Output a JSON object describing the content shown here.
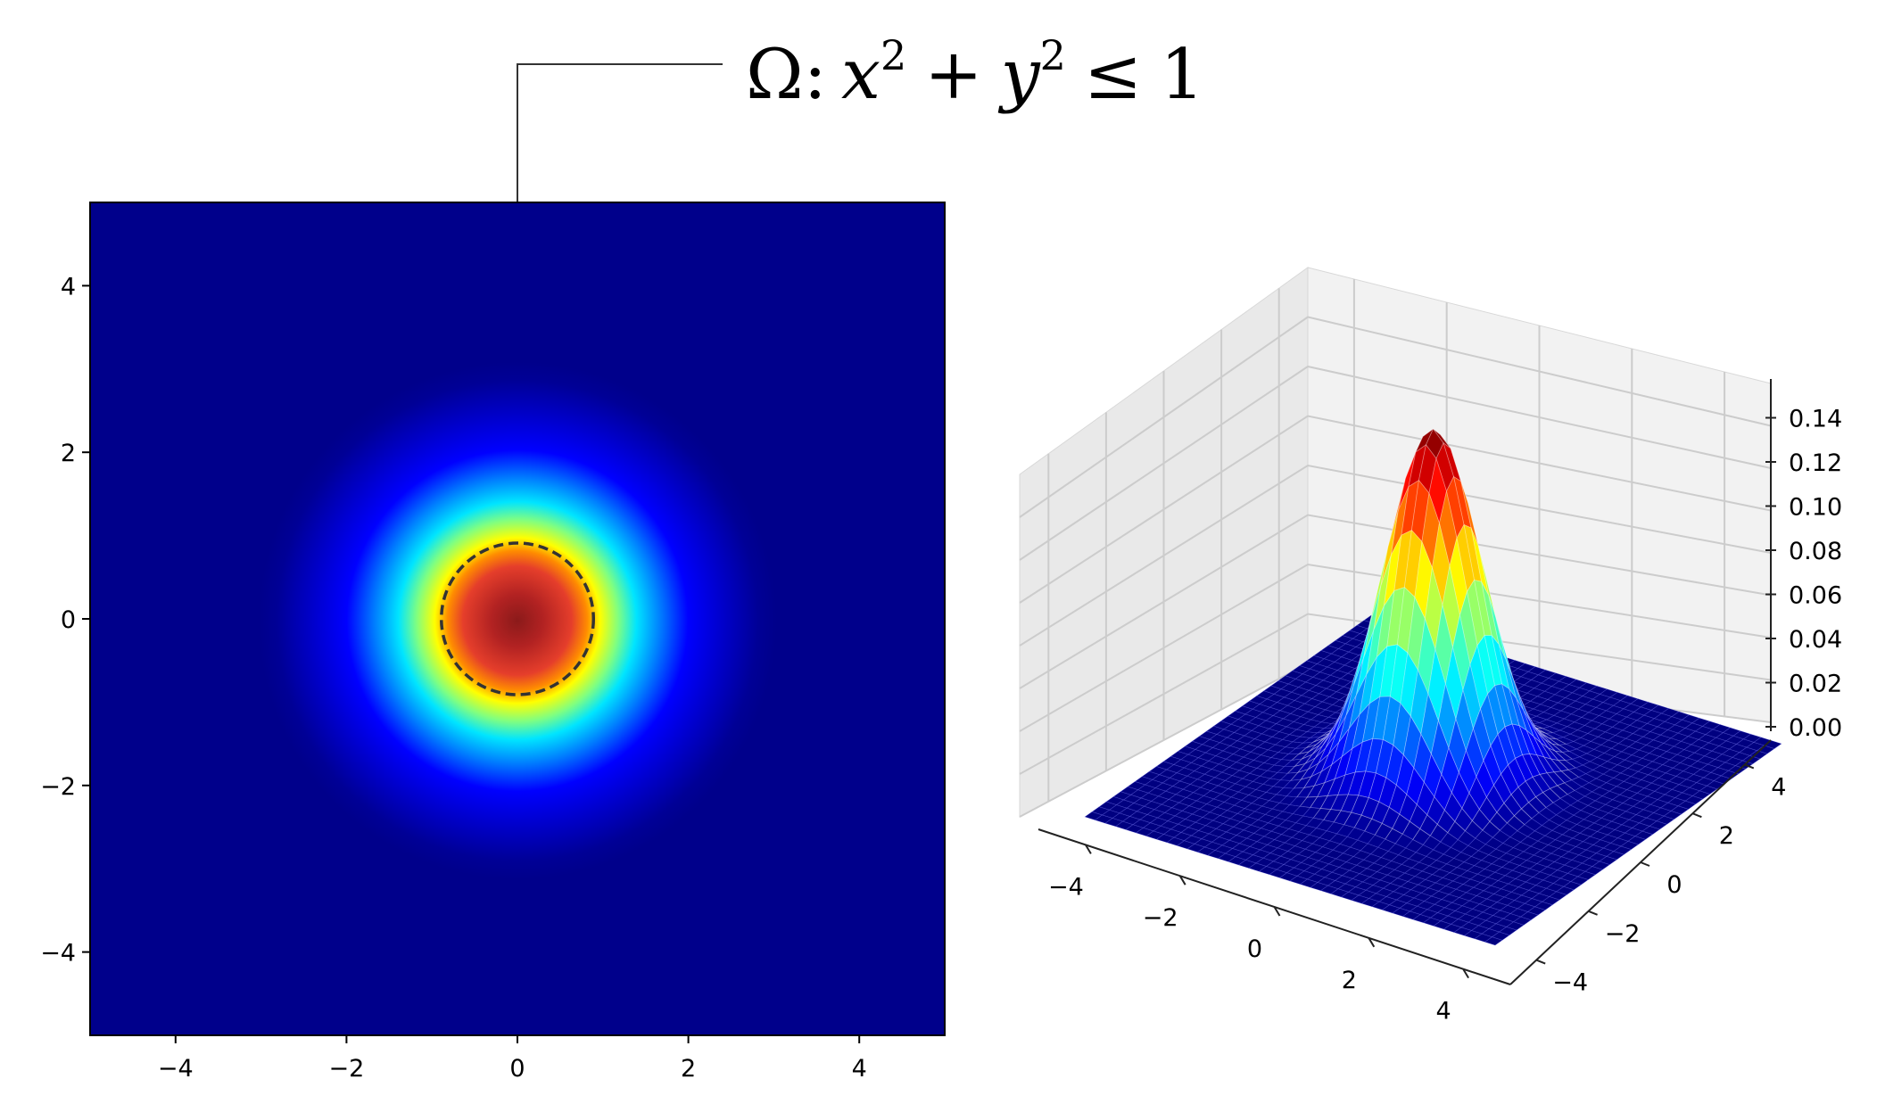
{
  "annotation": {
    "omega": "Ω",
    "colon": ":",
    "x_var": "x",
    "x_exp": "2",
    "plus": "+",
    "y_var": "y",
    "y_exp": "2",
    "leq": "≤",
    "rhs": "1"
  },
  "chart_data": [
    {
      "type": "heatmap",
      "title": "",
      "xlabel": "",
      "ylabel": "",
      "xlim": [
        -5,
        5
      ],
      "ylim": [
        -5,
        5
      ],
      "colormap": "jet",
      "function": "bivariate normal density, centered at (0, 0), peak ≈ 0.16",
      "x_ticks": [
        -4,
        -2,
        0,
        2,
        4
      ],
      "y_ticks": [
        -4,
        -2,
        0,
        2,
        4
      ],
      "x_tick_labels": [
        "−4",
        "−2",
        "0",
        "2",
        "4"
      ],
      "y_tick_labels": [
        "−4",
        "−2",
        "0",
        "2",
        "4"
      ],
      "region": {
        "shape": "circle",
        "center": [
          0,
          0
        ],
        "radius": 1,
        "style": "dashed"
      },
      "grid": false,
      "colors": {
        "background_low": "#00008b",
        "peak": "#8b0000",
        "outline": "#333333"
      }
    },
    {
      "type": "surface",
      "title": "",
      "colormap": "jet",
      "function": "bivariate normal density, centered at (0, 0)",
      "xlim": [
        -5,
        5
      ],
      "ylim": [
        -5,
        5
      ],
      "zlim": [
        0,
        0.16
      ],
      "x_ticks": [
        -4,
        -2,
        0,
        2,
        4
      ],
      "y_ticks": [
        -4,
        -2,
        0,
        2,
        4
      ],
      "z_ticks": [
        0.0,
        0.02,
        0.04,
        0.06,
        0.08,
        0.1,
        0.12,
        0.14
      ],
      "x_tick_labels": [
        "−4",
        "−2",
        "0",
        "2",
        "4"
      ],
      "y_tick_labels": [
        "−4",
        "−2",
        "0",
        "2",
        "4"
      ],
      "z_tick_labels": [
        "0.00",
        "0.02",
        "0.04",
        "0.06",
        "0.08",
        "0.10",
        "0.12",
        "0.14"
      ],
      "grid": true,
      "colors": {
        "pane_left": "#e9e9e9",
        "pane_back": "#f0f0f0",
        "floor": "#00008b",
        "gridline": "#cccccc"
      }
    }
  ]
}
